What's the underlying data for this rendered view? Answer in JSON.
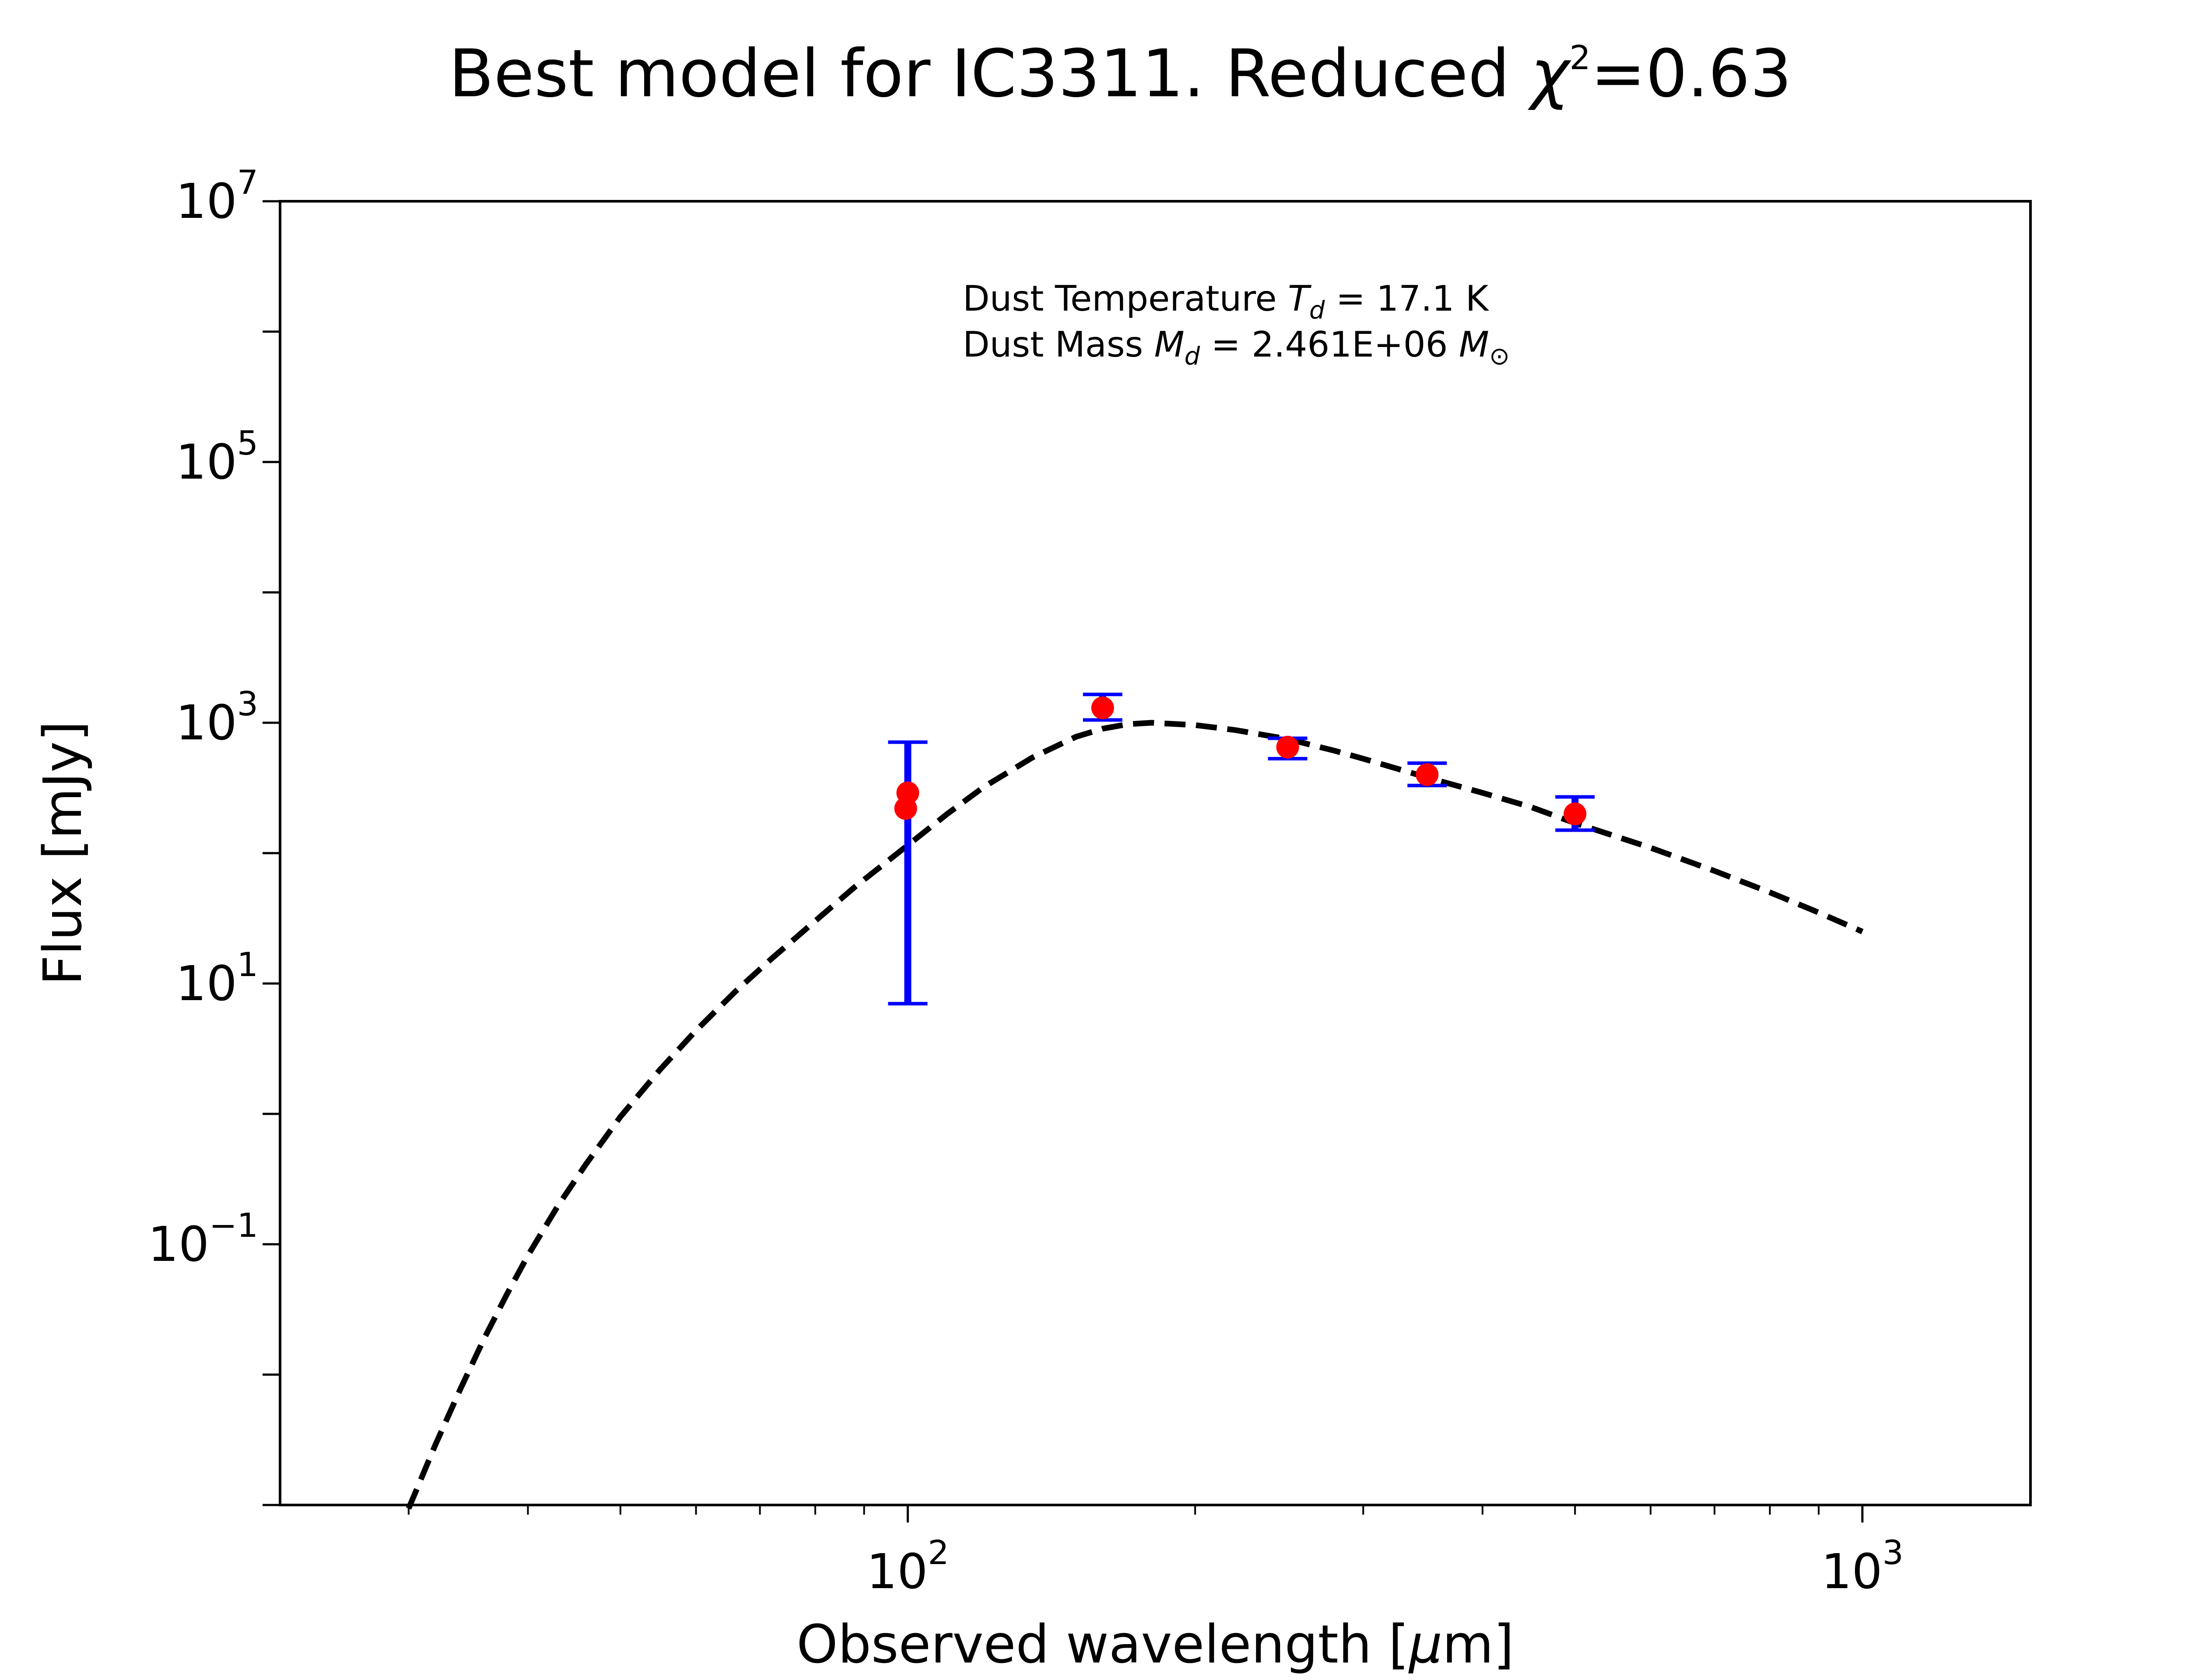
{
  "chart_data": {
    "type": "scatter",
    "title": {
      "prefix": "Best model for IC3311. Reduced ",
      "symbol": "χ",
      "exponent": "2",
      "suffix": "=0.63"
    },
    "xlabel": {
      "prefix": "Observed wavelength [",
      "unit_symbol": "μ",
      "unit_rest": "m]"
    },
    "ylabel": "Flux [mJy]",
    "xscale": "log",
    "yscale": "log",
    "xlim": [
      22,
      1500
    ],
    "ylim": [
      0.001,
      10000000
    ],
    "grid": false,
    "x_ticks": [
      {
        "value": 100,
        "base": "10",
        "exp": "2"
      },
      {
        "value": 1000,
        "base": "10",
        "exp": "3"
      }
    ],
    "y_ticks": [
      {
        "value": 10000000,
        "base": "10",
        "exp": "7"
      },
      {
        "value": 100000,
        "base": "10",
        "exp": "5"
      },
      {
        "value": 1000,
        "base": "10",
        "exp": "3"
      },
      {
        "value": 10,
        "base": "10",
        "exp": "1"
      },
      {
        "value": 0.1,
        "base": "10",
        "exp": "−1"
      }
    ],
    "annotation": {
      "line1": {
        "prefix": "Dust Temperature ",
        "symbol": "T",
        "subscript": "d",
        "suffix": " = 17.1 K"
      },
      "line2": {
        "prefix": "Dust Mass ",
        "symbol": "M",
        "subscript": "d",
        "value": " = 2.461E+06 ",
        "unit_symbol": "M",
        "unit_subscript": "⊙"
      }
    },
    "series": [
      {
        "kind": "model",
        "color": "#000000",
        "linestyle": "dashed",
        "x": [
          30,
          32,
          34,
          36,
          38,
          40,
          43,
          46,
          50,
          55,
          60,
          66,
          72,
          80,
          88,
          100,
          110,
          120,
          135,
          150,
          160,
          170,
          180,
          200,
          220,
          250,
          280,
          300,
          350,
          400,
          450,
          500,
          600,
          700,
          800,
          900,
          1000
        ],
        "y": [
          0.00094,
          0.0029,
          0.0078,
          0.019,
          0.041,
          0.082,
          0.197,
          0.41,
          0.95,
          2.18,
          4.36,
          8.7,
          15.5,
          30.2,
          55,
          115,
          200,
          320,
          540,
          780,
          900,
          975,
          1000,
          960,
          880,
          750,
          610,
          530,
          380,
          290,
          225,
          170,
          110,
          73,
          50,
          35,
          25
        ]
      },
      {
        "kind": "observed",
        "color": "#ff0000",
        "errorbar_color": "#0000ff",
        "points": [
          {
            "x": 100,
            "y": 290,
            "yerr_low": 283,
            "yerr_high": 420
          },
          {
            "x": 99.5,
            "y": 220
          },
          {
            "x": 160,
            "y": 1300,
            "yerr_low": 250,
            "yerr_high": 350
          },
          {
            "x": 250,
            "y": 650,
            "yerr_low": 120,
            "yerr_high": 110
          },
          {
            "x": 350,
            "y": 400,
            "yerr_low": 70,
            "yerr_high": 90
          },
          {
            "x": 500,
            "y": 200,
            "yerr_low": 50,
            "yerr_high": 70
          }
        ]
      }
    ]
  }
}
